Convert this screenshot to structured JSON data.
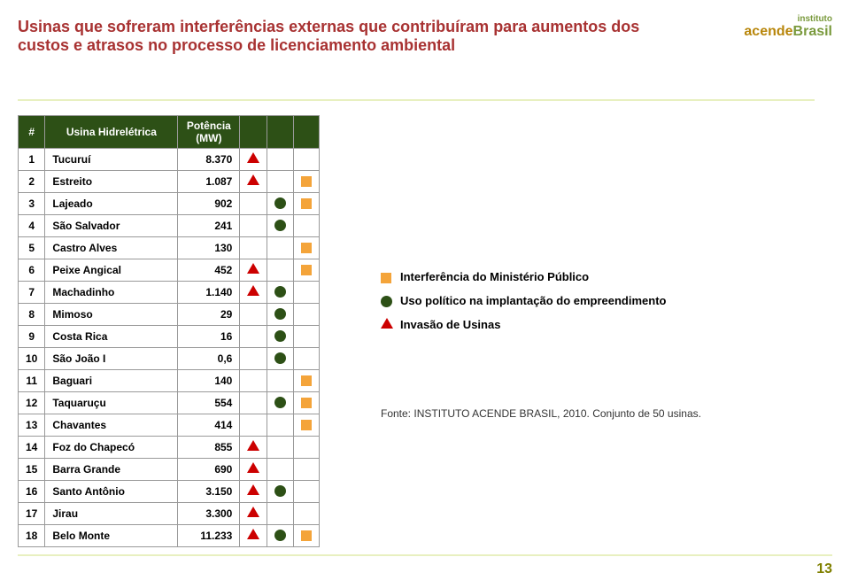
{
  "title": "Usinas que sofreram interferências externas que contribuíram para aumentos dos custos e atrasos no processo de licenciamento ambiental",
  "title_fontsize": 18,
  "title_color": "#a83232",
  "logo": {
    "top": "instituto",
    "accent": "acende",
    "brand": "Brasil",
    "accent_color": "#b8860b",
    "brand_color": "#7a9a3d"
  },
  "table": {
    "header_bg": "#2d5016",
    "header_color": "#ffffff",
    "border_color": "#999999",
    "cell_bg": "#ffffff",
    "fontsize": 12,
    "columns": [
      "#",
      "Usina Hidrelétrica",
      "Potência (MW)"
    ],
    "rows": [
      {
        "n": "1",
        "name": "Tucuruí",
        "pow": "8.370",
        "m1": "tri-red",
        "m2": "",
        "m3": ""
      },
      {
        "n": "2",
        "name": "Estreito",
        "pow": "1.087",
        "m1": "tri-red",
        "m2": "",
        "m3": "sq-orange"
      },
      {
        "n": "3",
        "name": "Lajeado",
        "pow": "902",
        "m1": "",
        "m2": "cir-green",
        "m3": "sq-orange"
      },
      {
        "n": "4",
        "name": "São Salvador",
        "pow": "241",
        "m1": "",
        "m2": "cir-green",
        "m3": ""
      },
      {
        "n": "5",
        "name": "Castro Alves",
        "pow": "130",
        "m1": "",
        "m2": "",
        "m3": "sq-orange"
      },
      {
        "n": "6",
        "name": "Peixe Angical",
        "pow": "452",
        "m1": "tri-red",
        "m2": "",
        "m3": "sq-orange"
      },
      {
        "n": "7",
        "name": "Machadinho",
        "pow": "1.140",
        "m1": "tri-red",
        "m2": "cir-green",
        "m3": ""
      },
      {
        "n": "8",
        "name": "Mimoso",
        "pow": "29",
        "m1": "",
        "m2": "cir-green",
        "m3": ""
      },
      {
        "n": "9",
        "name": "Costa Rica",
        "pow": "16",
        "m1": "",
        "m2": "cir-green",
        "m3": ""
      },
      {
        "n": "10",
        "name": "São João I",
        "pow": "0,6",
        "m1": "",
        "m2": "cir-green",
        "m3": ""
      },
      {
        "n": "11",
        "name": "Baguari",
        "pow": "140",
        "m1": "",
        "m2": "",
        "m3": "sq-orange"
      },
      {
        "n": "12",
        "name": "Taquaruçu",
        "pow": "554",
        "m1": "",
        "m2": "cir-green",
        "m3": "sq-orange"
      },
      {
        "n": "13",
        "name": "Chavantes",
        "pow": "414",
        "m1": "",
        "m2": "",
        "m3": "sq-orange"
      },
      {
        "n": "14",
        "name": "Foz do Chapecó",
        "pow": "855",
        "m1": "tri-red",
        "m2": "",
        "m3": ""
      },
      {
        "n": "15",
        "name": "Barra Grande",
        "pow": "690",
        "m1": "tri-red",
        "m2": "",
        "m3": ""
      },
      {
        "n": "16",
        "name": "Santo Antônio",
        "pow": "3.150",
        "m1": "tri-red",
        "m2": "cir-green",
        "m3": ""
      },
      {
        "n": "17",
        "name": "Jirau",
        "pow": "3.300",
        "m1": "tri-red",
        "m2": "",
        "m3": ""
      },
      {
        "n": "18",
        "name": "Belo Monte",
        "pow": "11.233",
        "m1": "tri-red",
        "m2": "cir-green",
        "m3": "sq-orange"
      }
    ]
  },
  "markers": {
    "tri-red": {
      "shape": "triangle",
      "color": "#cc0000"
    },
    "cir-green": {
      "shape": "circle",
      "color": "#2d5016"
    },
    "sq-orange": {
      "shape": "square",
      "color": "#f4a43a"
    }
  },
  "legend": [
    {
      "shape": "sq-orange",
      "label": "Interferência do Ministério Público"
    },
    {
      "shape": "cir-green",
      "label": "Uso político na implantação do empreendimento"
    },
    {
      "shape": "tri-red",
      "label": "Invasão de Usinas"
    }
  ],
  "legend_fontsize": 13,
  "source": "Fonte: INSTITUTO ACENDE BRASIL, 2010. Conjunto de 50 usinas.",
  "source_fontsize": 12,
  "source_color": "#333333",
  "pagenum": "13",
  "pagenum_color": "#808000"
}
